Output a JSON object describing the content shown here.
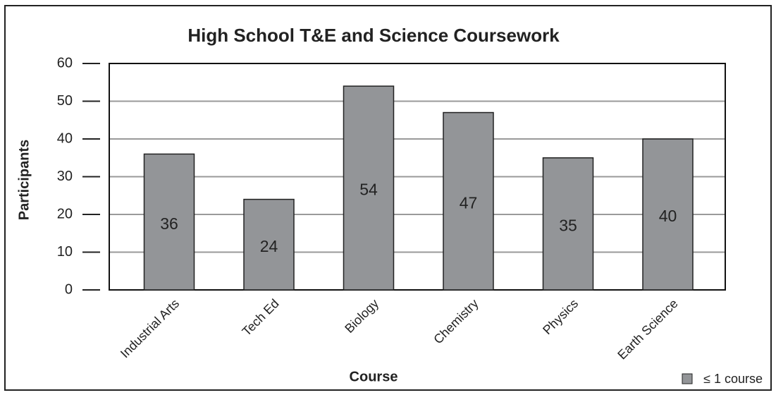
{
  "chart_data": {
    "type": "bar",
    "title": "High School T&E and Science Coursework",
    "xlabel": "Course",
    "ylabel": "Participants",
    "categories": [
      "Industrial Arts",
      "Tech Ed",
      "Biology",
      "Chemistry",
      "Physics",
      "Earth Science"
    ],
    "series": [
      {
        "name": "≤ 1 course",
        "color": "#939598",
        "values": [
          36,
          24,
          54,
          47,
          35,
          40
        ]
      }
    ],
    "ylim": [
      0,
      60
    ],
    "yticks": [
      0,
      10,
      20,
      30,
      40,
      50,
      60
    ],
    "grid": true,
    "legend": "bottom-right"
  }
}
